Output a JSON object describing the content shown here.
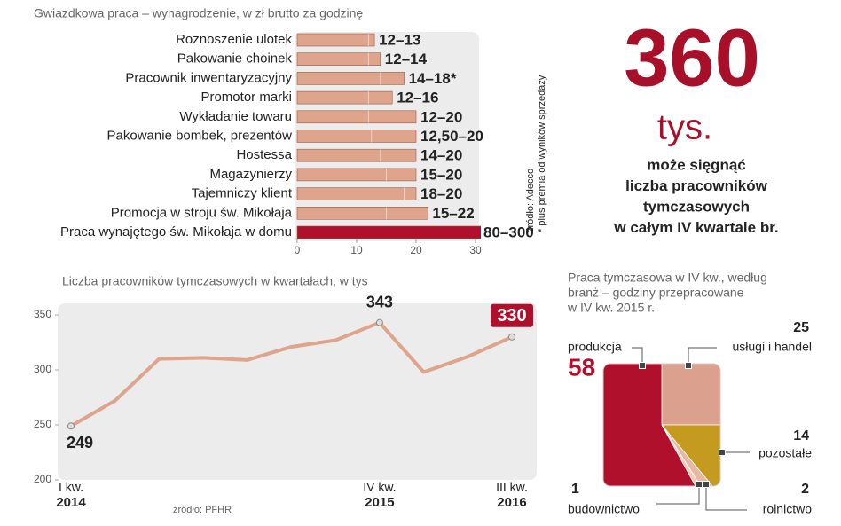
{
  "chart_data": [
    {
      "type": "range-bar",
      "title": "Gwiazdkowa praca – wynagrodzenie, w zł brutto za godzinę",
      "categories": [
        "Roznoszenie ulotek",
        "Pakowanie choinek",
        "Pracownik inwentaryzacyjny",
        "Promotor marki",
        "Wykładanie towaru",
        "Pakowanie bombek, prezentów",
        "Hostessa",
        "Magazynierzy",
        "Tajemniczy klient",
        "Promocja w stroju św. Mikołaja",
        "Praca wynajętego św. Mikołaja w domu"
      ],
      "low": [
        12,
        12,
        14,
        12,
        12,
        12.5,
        14,
        15,
        18,
        15,
        80
      ],
      "high": [
        13,
        14,
        18,
        16,
        20,
        20,
        20,
        20,
        20,
        22,
        300
      ],
      "value_labels": [
        "12–13",
        "12–14",
        "14–18*",
        "12–16",
        "12–20",
        "12,50–20",
        "14–20",
        "15–20",
        "18–20",
        "15–22",
        "80–300"
      ],
      "colors": [
        "#dfa48c",
        "#dfa48c",
        "#dfa48c",
        "#dfa48c",
        "#dfa48c",
        "#dfa48c",
        "#dfa48c",
        "#dfa48c",
        "#dfa48c",
        "#dfa48c",
        "#b0102c"
      ],
      "xlim": [
        0,
        30
      ],
      "xticks": [
        0,
        10,
        20,
        30
      ],
      "source": "źródło: Adecco",
      "footnote": "* plus premia od wyników sprzedaży"
    },
    {
      "type": "headline",
      "number": "360",
      "unit": "tys.",
      "lines": [
        "może sięgnąć",
        "liczba pracowników",
        "tymczasowych",
        "w całym IV kwartale br."
      ]
    },
    {
      "type": "line",
      "title": "Liczba pracowników tymczasowych w kwartałach, w tys",
      "categories": [
        {
          "quarter": "I kw.",
          "year": "2014"
        },
        null,
        null,
        null,
        null,
        null,
        null,
        {
          "quarter": "IV kw.",
          "year": "2015"
        },
        null,
        null,
        {
          "quarter": "III kw.",
          "year": "2016"
        }
      ],
      "values": [
        249,
        272,
        310,
        311,
        309,
        321,
        327,
        343,
        298,
        312,
        330
      ],
      "value_labels": [
        "249",
        null,
        null,
        null,
        null,
        null,
        null,
        "343",
        null,
        null,
        "330"
      ],
      "color": "#dfa48c",
      "highlight_color": "#b0102c",
      "ylim": [
        200,
        360
      ],
      "yticks": [
        200,
        250,
        300,
        350
      ],
      "source": "źródło: PFHR"
    },
    {
      "type": "pie",
      "title": [
        "Praca tymczasowa w IV kw., według",
        "branż – godziny przepracowane",
        "w IV kw. 2015 r."
      ],
      "categories": [
        "usługi i handel",
        "pozostałe",
        "rolnictwo",
        "budownictwo",
        "produkcja"
      ],
      "values": [
        25,
        14,
        2,
        1,
        58
      ],
      "colors": [
        "#dca08e",
        "#c49a1f",
        "#e7b9a4",
        "#f0cdb9",
        "#b0102c"
      ]
    }
  ]
}
